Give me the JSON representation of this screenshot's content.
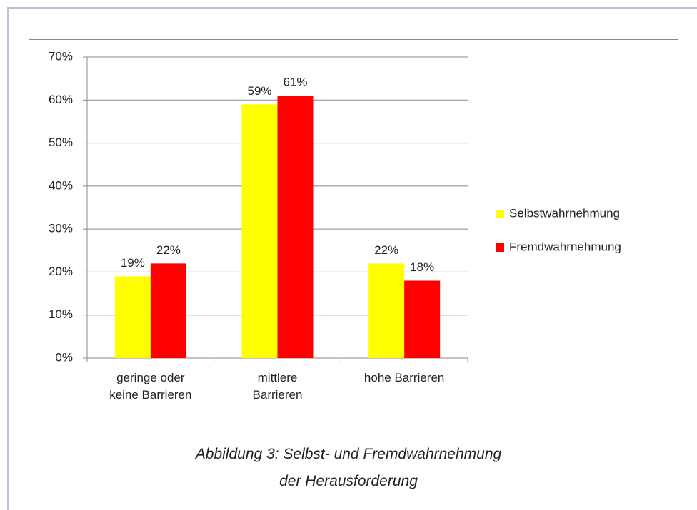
{
  "chart_data": {
    "type": "bar",
    "categories": [
      "geringe oder\nkeine Barrieren",
      "mittlere\nBarrieren",
      "hohe Barrieren"
    ],
    "series": [
      {
        "name": "Selbstwahrnehmung",
        "color": "#ffff00",
        "values": [
          19,
          59,
          22
        ],
        "value_labels": [
          "19%",
          "59%",
          "22%"
        ]
      },
      {
        "name": "Fremdwahrnehmung",
        "color": "#ff0000",
        "values": [
          22,
          61,
          18
        ],
        "value_labels": [
          "22%",
          "61%",
          "18%"
        ]
      }
    ],
    "ylim": [
      0,
      70
    ],
    "yticks": [
      {
        "value": 0,
        "label": "0%"
      },
      {
        "value": 10,
        "label": "10%"
      },
      {
        "value": 20,
        "label": "20%"
      },
      {
        "value": 30,
        "label": "30%"
      },
      {
        "value": 40,
        "label": "40%"
      },
      {
        "value": 50,
        "label": "50%"
      },
      {
        "value": 60,
        "label": "60%"
      },
      {
        "value": 70,
        "label": "70%"
      }
    ],
    "grid": true,
    "legend": "right"
  },
  "caption": "Abbildung 3: Selbst- und Fremdwahrnehmung\nder Herausforderung"
}
